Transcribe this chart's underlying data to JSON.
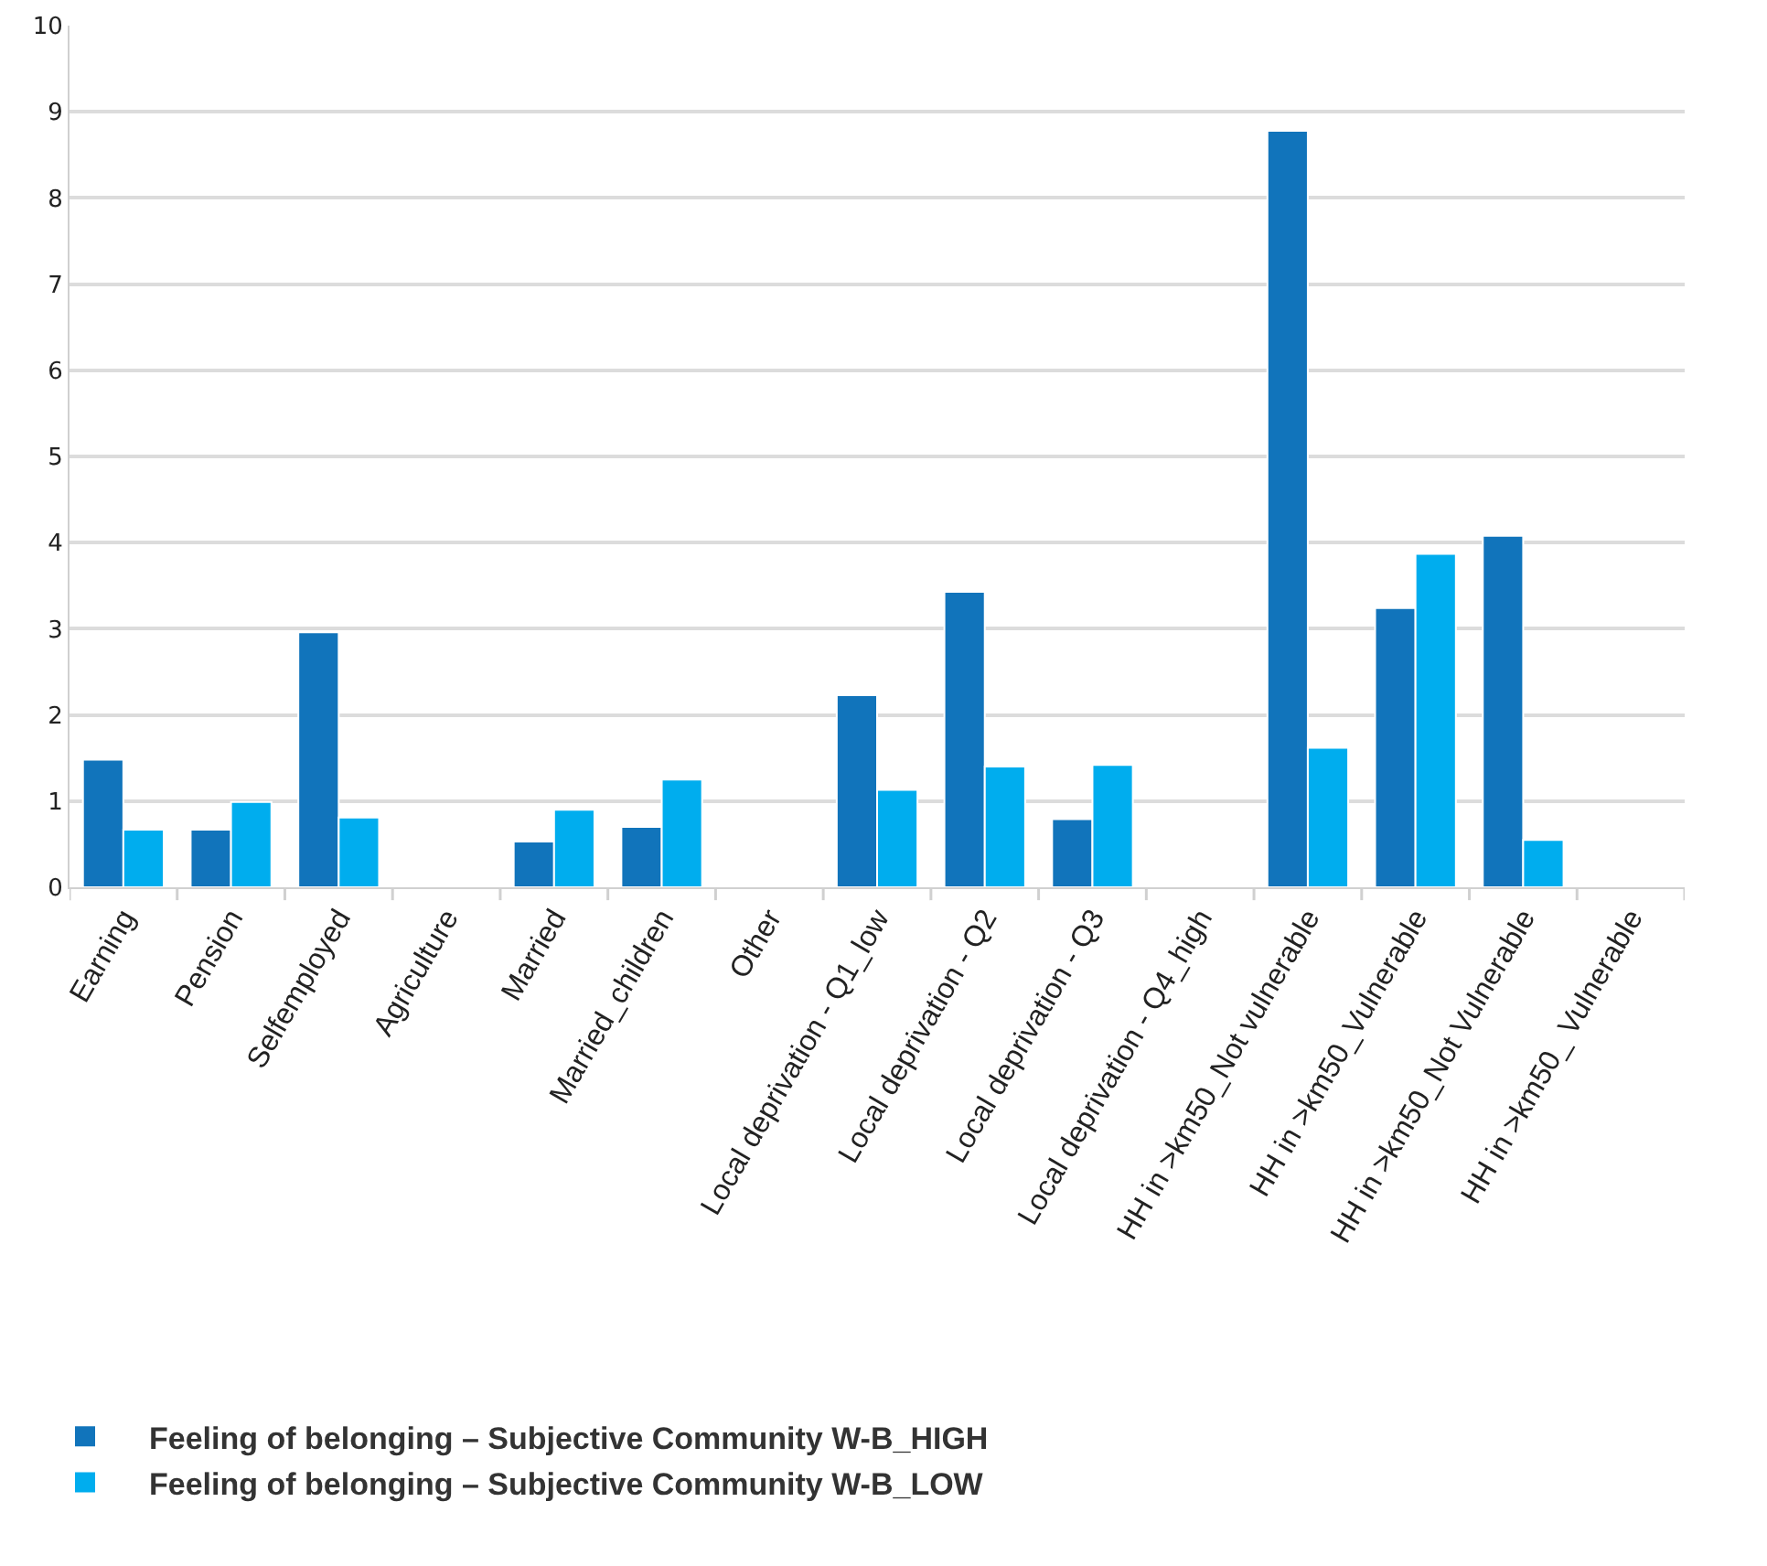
{
  "chart_data": {
    "type": "bar",
    "categories": [
      "Earning",
      "Pension",
      "Selfemployed",
      "Agriculture",
      "Married",
      "Married_children",
      "Other",
      "Local deprivation - Q1_low",
      "Local deprivation - Q2",
      "Local deprivation - Q3",
      "Local deprivation - Q4_high",
      "HH in >km50_Not vulnerable",
      "HH in >km50_Vulnerable",
      "HH in >km50_Not Vulnerable",
      "HH in >km50_ Vulnerable"
    ],
    "series": [
      {
        "name": "Feeling of belonging – Subjective Community W-B_HIGH",
        "color": "#1174bb",
        "values": [
          1.48,
          0.67,
          2.96,
          null,
          0.53,
          0.7,
          null,
          2.23,
          3.43,
          0.79,
          null,
          8.78,
          3.24,
          4.08,
          null
        ]
      },
      {
        "name": "Feeling of belonging – Subjective Community W-B_LOW",
        "color": "#00adee",
        "values": [
          0.67,
          0.99,
          0.81,
          null,
          0.9,
          1.25,
          null,
          1.13,
          1.4,
          1.42,
          null,
          1.62,
          3.87,
          0.55,
          null
        ]
      }
    ],
    "ylim": [
      0,
      10
    ],
    "yticks": [
      0,
      1,
      2,
      3,
      4,
      5,
      6,
      7,
      8,
      9,
      10
    ],
    "grid": "y",
    "legend": "bottom left"
  }
}
